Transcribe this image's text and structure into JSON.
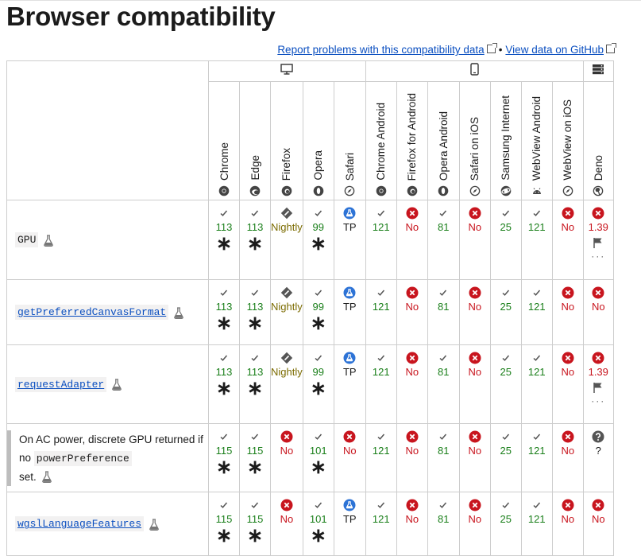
{
  "title": "Browser compatibility",
  "links": {
    "report": "Report problems with this compatibility data",
    "separator": "•",
    "github": "View data on GitHub"
  },
  "platforms": [
    "desktop-icon",
    "mobile-icon",
    "server-icon"
  ],
  "browsers": [
    "Chrome",
    "Edge",
    "Firefox",
    "Opera",
    "Safari",
    "Chrome Android",
    "Firefox for Android",
    "Opera Android",
    "Safari on iOS",
    "Samsung Internet",
    "WebView Android",
    "WebView on iOS",
    "Deno"
  ],
  "colors": {
    "yes": "#1a7f1a",
    "no": "#c8151e",
    "nightly": "#7b6b00",
    "link": "#0b4fc0",
    "preview": "#2d73d6"
  },
  "rows": [
    {
      "name": "GPU",
      "kind": "code",
      "cells": [
        {
          "t": "y",
          "v": "113",
          "star": true
        },
        {
          "t": "y",
          "v": "113",
          "star": true
        },
        {
          "t": "n",
          "v": "Nightly"
        },
        {
          "t": "y",
          "v": "99",
          "star": true
        },
        {
          "t": "p",
          "v": "TP"
        },
        {
          "t": "y",
          "v": "121"
        },
        {
          "t": "x",
          "v": "No"
        },
        {
          "t": "y",
          "v": "81"
        },
        {
          "t": "x",
          "v": "No"
        },
        {
          "t": "y",
          "v": "25"
        },
        {
          "t": "y",
          "v": "121"
        },
        {
          "t": "x",
          "v": "No"
        },
        {
          "t": "x",
          "v": "1.39",
          "flag": true,
          "dots": "···"
        }
      ]
    },
    {
      "name": "getPreferredCanvasFormat",
      "kind": "link",
      "cells": [
        {
          "t": "y",
          "v": "113",
          "star": true
        },
        {
          "t": "y",
          "v": "113",
          "star": true
        },
        {
          "t": "n",
          "v": "Nightly"
        },
        {
          "t": "y",
          "v": "99",
          "star": true
        },
        {
          "t": "p",
          "v": "TP"
        },
        {
          "t": "y",
          "v": "121"
        },
        {
          "t": "x",
          "v": "No"
        },
        {
          "t": "y",
          "v": "81"
        },
        {
          "t": "x",
          "v": "No"
        },
        {
          "t": "y",
          "v": "25"
        },
        {
          "t": "y",
          "v": "121"
        },
        {
          "t": "x",
          "v": "No"
        },
        {
          "t": "x",
          "v": "No"
        }
      ]
    },
    {
      "name": "requestAdapter",
      "kind": "link",
      "cells": [
        {
          "t": "y",
          "v": "113",
          "star": true
        },
        {
          "t": "y",
          "v": "113",
          "star": true
        },
        {
          "t": "n",
          "v": "Nightly"
        },
        {
          "t": "y",
          "v": "99",
          "star": true
        },
        {
          "t": "p",
          "v": "TP"
        },
        {
          "t": "y",
          "v": "121"
        },
        {
          "t": "x",
          "v": "No"
        },
        {
          "t": "y",
          "v": "81"
        },
        {
          "t": "x",
          "v": "No"
        },
        {
          "t": "y",
          "v": "25"
        },
        {
          "t": "y",
          "v": "121"
        },
        {
          "t": "x",
          "v": "No"
        },
        {
          "t": "x",
          "v": "1.39",
          "flag": true,
          "dots": "···"
        }
      ]
    },
    {
      "name": "",
      "kind": "sub",
      "sub_text1": "On AC power, discrete GPU returned if no",
      "sub_code": "powerPreference",
      "sub_text2": "set.",
      "cells": [
        {
          "t": "y",
          "v": "115",
          "star": true
        },
        {
          "t": "y",
          "v": "115",
          "star": true
        },
        {
          "t": "x",
          "v": "No"
        },
        {
          "t": "y",
          "v": "101",
          "star": true
        },
        {
          "t": "x",
          "v": "No"
        },
        {
          "t": "y",
          "v": "121"
        },
        {
          "t": "x",
          "v": "No"
        },
        {
          "t": "y",
          "v": "81"
        },
        {
          "t": "x",
          "v": "No"
        },
        {
          "t": "y",
          "v": "25"
        },
        {
          "t": "y",
          "v": "121"
        },
        {
          "t": "x",
          "v": "No"
        },
        {
          "t": "q",
          "v": "?"
        }
      ]
    },
    {
      "name": "wgslLanguageFeatures",
      "kind": "link",
      "cells": [
        {
          "t": "y",
          "v": "115",
          "star": true
        },
        {
          "t": "y",
          "v": "115",
          "star": true
        },
        {
          "t": "x",
          "v": "No"
        },
        {
          "t": "y",
          "v": "101",
          "star": true
        },
        {
          "t": "p",
          "v": "TP"
        },
        {
          "t": "y",
          "v": "121"
        },
        {
          "t": "x",
          "v": "No"
        },
        {
          "t": "y",
          "v": "81"
        },
        {
          "t": "x",
          "v": "No"
        },
        {
          "t": "y",
          "v": "25"
        },
        {
          "t": "y",
          "v": "121"
        },
        {
          "t": "x",
          "v": "No"
        },
        {
          "t": "x",
          "v": "No"
        }
      ]
    }
  ]
}
